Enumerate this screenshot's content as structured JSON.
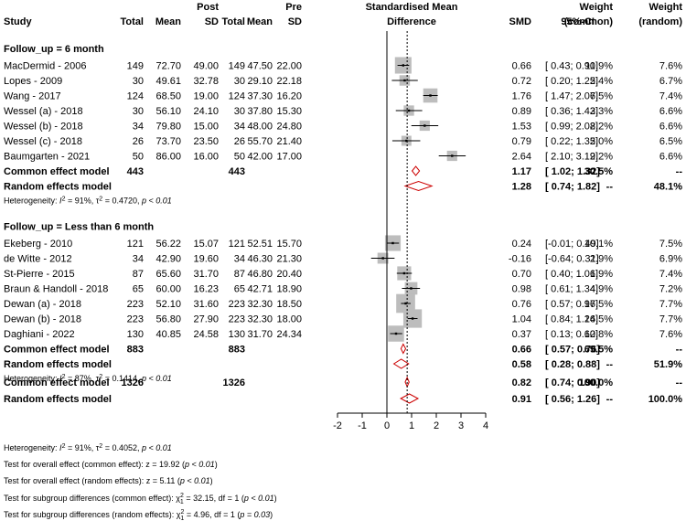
{
  "chart_data": {
    "type": "forest",
    "title": "Standardised Mean Difference",
    "header": {
      "row1": {
        "post": "Post",
        "pre": "Pre",
        "smd_title": "Standardised Mean",
        "weight_c": "Weight",
        "weight_r": "Weight"
      },
      "row2": {
        "study": "Study",
        "total_post": "Total",
        "mean_post": "Mean",
        "sd_post": "SD",
        "total_pre": "Total",
        "mean_pre": "Mean",
        "sd_pre": "SD",
        "difference": "Difference",
        "smd": "SMD",
        "ci": "95%-CI",
        "weight_c": "(common)",
        "weight_r": "(random)"
      }
    },
    "x_axis": {
      "range": [
        -2,
        4
      ],
      "ticks": [
        -2,
        -1,
        0,
        1,
        2,
        3,
        4
      ],
      "tick_labels": [
        "-2",
        "-1",
        "0",
        "1",
        "2",
        "3",
        "4"
      ],
      "null_line": 0,
      "common_effect_line": 0.82
    },
    "groups": [
      {
        "title": "Follow_up = 6 month",
        "studies": [
          {
            "name": "MacDermid - 2006",
            "total_post": "149",
            "mean_post": "72.70",
            "sd_post": "49.00",
            "total_pre": "149",
            "mean_pre": "47.50",
            "sd_pre": "22.00",
            "smd": 0.66,
            "lower": 0.43,
            "upper": 0.9,
            "smd_text": "0.66",
            "ci_text": "[ 0.43; 0.90]",
            "weight_common": "11.9%",
            "weight_random": "7.6%"
          },
          {
            "name": "Lopes - 2009",
            "total_post": "30",
            "mean_post": "49.61",
            "sd_post": "32.78",
            "total_pre": "30",
            "mean_pre": "29.10",
            "sd_pre": "22.18",
            "smd": 0.72,
            "lower": 0.2,
            "upper": 1.25,
            "smd_text": "0.72",
            "ci_text": "[ 0.20; 1.25]",
            "weight_common": "2.4%",
            "weight_random": "6.7%"
          },
          {
            "name": "Wang - 2017",
            "total_post": "124",
            "mean_post": "68.50",
            "sd_post": "19.00",
            "total_pre": "124",
            "mean_pre": "37.30",
            "sd_pre": "16.20",
            "smd": 1.76,
            "lower": 1.47,
            "upper": 2.06,
            "smd_text": "1.76",
            "ci_text": "[ 1.47; 2.06]",
            "weight_common": "7.5%",
            "weight_random": "7.4%"
          },
          {
            "name": "Wessel (a) - 2018",
            "total_post": "30",
            "mean_post": "56.10",
            "sd_post": "24.10",
            "total_pre": "30",
            "mean_pre": "37.80",
            "sd_pre": "15.30",
            "smd": 0.89,
            "lower": 0.36,
            "upper": 1.43,
            "smd_text": "0.89",
            "ci_text": "[ 0.36; 1.43]",
            "weight_common": "2.3%",
            "weight_random": "6.6%"
          },
          {
            "name": "Wessel (b) - 2018",
            "total_post": "34",
            "mean_post": "79.80",
            "sd_post": "15.00",
            "total_pre": "34",
            "mean_pre": "48.00",
            "sd_pre": "24.80",
            "smd": 1.53,
            "lower": 0.99,
            "upper": 2.08,
            "smd_text": "1.53",
            "ci_text": "[ 0.99; 2.08]",
            "weight_common": "2.2%",
            "weight_random": "6.6%"
          },
          {
            "name": "Wessel (c) - 2018",
            "total_post": "26",
            "mean_post": "73.70",
            "sd_post": "23.50",
            "total_pre": "26",
            "mean_pre": "55.70",
            "sd_pre": "21.40",
            "smd": 0.79,
            "lower": 0.22,
            "upper": 1.35,
            "smd_text": "0.79",
            "ci_text": "[ 0.22; 1.35]",
            "weight_common": "2.0%",
            "weight_random": "6.5%"
          },
          {
            "name": "Baumgarten - 2021",
            "total_post": "50",
            "mean_post": "86.00",
            "sd_post": "16.00",
            "total_pre": "50",
            "mean_pre": "42.00",
            "sd_pre": "17.00",
            "smd": 2.64,
            "lower": 2.1,
            "upper": 3.19,
            "smd_text": "2.64",
            "ci_text": "[ 2.10; 3.19]",
            "weight_common": "2.2%",
            "weight_random": "6.6%"
          }
        ],
        "common": {
          "label": "Common effect model",
          "total_post": "443",
          "total_pre": "443",
          "smd": 1.17,
          "lower": 1.02,
          "upper": 1.32,
          "smd_text": "1.17",
          "ci_text": "[ 1.02; 1.32]",
          "weight_common": "30.5%",
          "weight_random": "--"
        },
        "random": {
          "label": "Random effects model",
          "smd": 1.28,
          "lower": 0.74,
          "upper": 1.82,
          "smd_text": "1.28",
          "ci_text": "[ 0.74; 1.82]",
          "weight_common": "--",
          "weight_random": "48.1%"
        },
        "heterogeneity": {
          "i2": "91%",
          "tau2": "0.4720",
          "p": "p < 0.01"
        }
      },
      {
        "title": "Follow_up = Less than 6 month",
        "studies": [
          {
            "name": "Ekeberg - 2010",
            "total_post": "121",
            "mean_post": "56.22",
            "sd_post": "15.07",
            "total_pre": "121",
            "mean_pre": "52.51",
            "sd_pre": "15.70",
            "smd": 0.24,
            "lower": -0.01,
            "upper": 0.49,
            "smd_text": "0.24",
            "ci_text": "[-0.01; 0.49]",
            "weight_common": "10.1%",
            "weight_random": "7.5%"
          },
          {
            "name": "de Witte - 2012",
            "total_post": "34",
            "mean_post": "42.90",
            "sd_post": "19.60",
            "total_pre": "34",
            "mean_pre": "46.30",
            "sd_pre": "21.30",
            "smd": -0.16,
            "lower": -0.64,
            "upper": 0.31,
            "smd_text": "-0.16",
            "ci_text": "[-0.64; 0.31]",
            "weight_common": "2.9%",
            "weight_random": "6.9%"
          },
          {
            "name": "St-Pierre - 2015",
            "total_post": "87",
            "mean_post": "65.60",
            "sd_post": "31.70",
            "total_pre": "87",
            "mean_pre": "46.80",
            "sd_pre": "20.40",
            "smd": 0.7,
            "lower": 0.4,
            "upper": 1.01,
            "smd_text": "0.70",
            "ci_text": "[ 0.40; 1.01]",
            "weight_common": "6.9%",
            "weight_random": "7.4%"
          },
          {
            "name": "Braun & Handoll - 2018",
            "total_post": "65",
            "mean_post": "60.00",
            "sd_post": "16.23",
            "total_pre": "65",
            "mean_pre": "42.71",
            "sd_pre": "18.90",
            "smd": 0.98,
            "lower": 0.61,
            "upper": 1.34,
            "smd_text": "0.98",
            "ci_text": "[ 0.61; 1.34]",
            "weight_common": "4.9%",
            "weight_random": "7.2%"
          },
          {
            "name": "Dewan (a) - 2018",
            "total_post": "223",
            "mean_post": "52.10",
            "sd_post": "31.60",
            "total_pre": "223",
            "mean_pre": "32.30",
            "sd_pre": "18.50",
            "smd": 0.76,
            "lower": 0.57,
            "upper": 0.96,
            "smd_text": "0.76",
            "ci_text": "[ 0.57; 0.96]",
            "weight_common": "17.5%",
            "weight_random": "7.7%"
          },
          {
            "name": "Dewan (b) - 2018",
            "total_post": "223",
            "mean_post": "56.80",
            "sd_post": "27.90",
            "total_pre": "223",
            "mean_pre": "32.30",
            "sd_pre": "18.00",
            "smd": 1.04,
            "lower": 0.84,
            "upper": 1.24,
            "smd_text": "1.04",
            "ci_text": "[ 0.84; 1.24]",
            "weight_common": "16.5%",
            "weight_random": "7.7%"
          },
          {
            "name": "Daghiani - 2022",
            "total_post": "130",
            "mean_post": "40.85",
            "sd_post": "24.58",
            "total_pre": "130",
            "mean_pre": "31.70",
            "sd_pre": "24.34",
            "smd": 0.37,
            "lower": 0.13,
            "upper": 0.62,
            "smd_text": "0.37",
            "ci_text": "[ 0.13; 0.62]",
            "weight_common": "10.8%",
            "weight_random": "7.6%"
          }
        ],
        "common": {
          "label": "Common effect model",
          "total_post": "883",
          "total_pre": "883",
          "smd": 0.66,
          "lower": 0.57,
          "upper": 0.76,
          "smd_text": "0.66",
          "ci_text": "[ 0.57; 0.76]",
          "weight_common": "69.5%",
          "weight_random": "--"
        },
        "random": {
          "label": "Random effects model",
          "smd": 0.58,
          "lower": 0.28,
          "upper": 0.88,
          "smd_text": "0.58",
          "ci_text": "[ 0.28; 0.88]",
          "weight_common": "--",
          "weight_random": "51.9%"
        },
        "heterogeneity": {
          "i2": "87%",
          "tau2": "0.1414",
          "p": "p < 0.01"
        }
      }
    ],
    "overall": {
      "common": {
        "label": "Common effect model",
        "total_post": "1326",
        "total_pre": "1326",
        "smd": 0.82,
        "lower": 0.74,
        "upper": 0.9,
        "smd_text": "0.82",
        "ci_text": "[ 0.74; 0.90]",
        "weight_common": "100.0%",
        "weight_random": "--"
      },
      "random": {
        "label": "Random effects model",
        "smd": 0.91,
        "lower": 0.56,
        "upper": 1.26,
        "smd_text": "0.91",
        "ci_text": "[ 0.56; 1.26]",
        "weight_common": "--",
        "weight_random": "100.0%"
      }
    },
    "footer": {
      "heterogeneity": {
        "i2": "91%",
        "tau2": "0.4052",
        "p": "p < 0.01"
      },
      "tests": [
        {
          "label": "Test for overall effect (common effect): ",
          "stat": "z = 19.92",
          "p": "p < 0.01",
          "kind": "z"
        },
        {
          "label": "Test for overall effect (random effects): ",
          "stat": "z = 5.11",
          "p": "p < 0.01",
          "kind": "z"
        },
        {
          "label": "Test for subgroup differences (common effect): ",
          "stat": "32.15, df = 1",
          "p": "p < 0.01",
          "kind": "chi"
        },
        {
          "label": "Test for subgroup differences (random effects): ",
          "stat": "4.96, df = 1",
          "p": "p = 0.03",
          "kind": "chi"
        }
      ]
    },
    "colors": {
      "text": "#000000",
      "box": "#bdbdbd",
      "diamond": "#cc0000",
      "ref_line": "#000000"
    }
  }
}
